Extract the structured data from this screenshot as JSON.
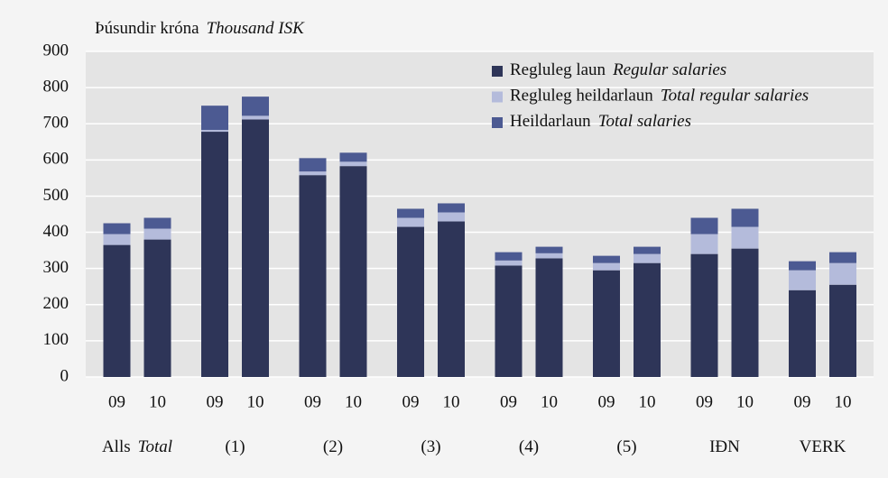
{
  "chart_data": {
    "type": "stacked_bar",
    "ylabel": "Þúsundir króna",
    "ylabel_en": "Thousand ISK",
    "categories": [
      "09",
      "10",
      "09",
      "10",
      "09",
      "10",
      "09",
      "10",
      "09",
      "10",
      "09",
      "10",
      "09",
      "10",
      "09",
      "10"
    ],
    "groups": [
      {
        "label": "Alls",
        "label_en": "Total"
      },
      {
        "label": "(1)"
      },
      {
        "label": "(2)"
      },
      {
        "label": "(3)"
      },
      {
        "label": "(4)"
      },
      {
        "label": "(5)"
      },
      {
        "label": "IÐN"
      },
      {
        "label": "VERK"
      }
    ],
    "series": [
      {
        "name": "Regluleg laun",
        "name_en": "Regular salaries",
        "color": "#2e3558",
        "values": [
          365,
          380,
          678,
          712,
          558,
          583,
          415,
          430,
          308,
          328,
          295,
          315,
          340,
          355,
          240,
          255
        ]
      },
      {
        "name": "Regluleg heildarlaun",
        "name_en": "Total regular salaries",
        "color": "#b4bbdb",
        "values": [
          30,
          30,
          5,
          10,
          10,
          12,
          25,
          25,
          14,
          14,
          20,
          25,
          55,
          60,
          55,
          60
        ]
      },
      {
        "name": "Heildarlaun",
        "name_en": "Total salaries",
        "color": "#4c5a92",
        "values": [
          30,
          30,
          67,
          53,
          37,
          25,
          25,
          25,
          23,
          18,
          20,
          20,
          45,
          50,
          25,
          30
        ]
      }
    ],
    "ylim": [
      0,
      900
    ],
    "yticks": [
      0,
      100,
      200,
      300,
      400,
      500,
      600,
      700,
      800,
      900
    ],
    "grid": true,
    "legend": "upper right"
  }
}
